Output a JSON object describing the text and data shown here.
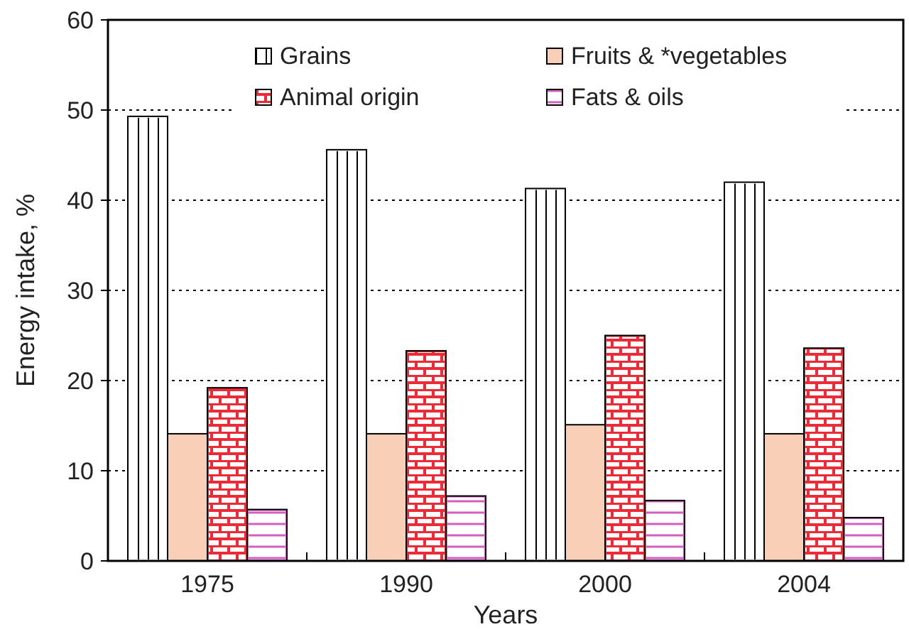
{
  "chart_data": {
    "type": "bar",
    "xlabel": "Years",
    "ylabel": "Energy intake, %",
    "categories": [
      "1975",
      "1990",
      "2000",
      "2004"
    ],
    "series": [
      {
        "name": "Grains",
        "color": "#ffffff",
        "values": [
          49.3,
          45.6,
          41.3,
          42.0
        ]
      },
      {
        "name": "Fruits & *vegetables",
        "color": "#f9cfb8",
        "values": [
          14.1,
          14.1,
          15.1,
          14.1
        ]
      },
      {
        "name": "Animal origin",
        "color": "#ee2a36",
        "values": [
          19.2,
          23.3,
          25.0,
          23.6
        ]
      },
      {
        "name": "Fats & oils",
        "color": "#d35fc0",
        "values": [
          5.7,
          7.2,
          6.7,
          4.8
        ]
      }
    ],
    "ylim": [
      0,
      60
    ],
    "yticks": [
      0,
      10,
      20,
      30,
      40,
      50,
      60
    ],
    "grid": "y",
    "legend": "top"
  }
}
